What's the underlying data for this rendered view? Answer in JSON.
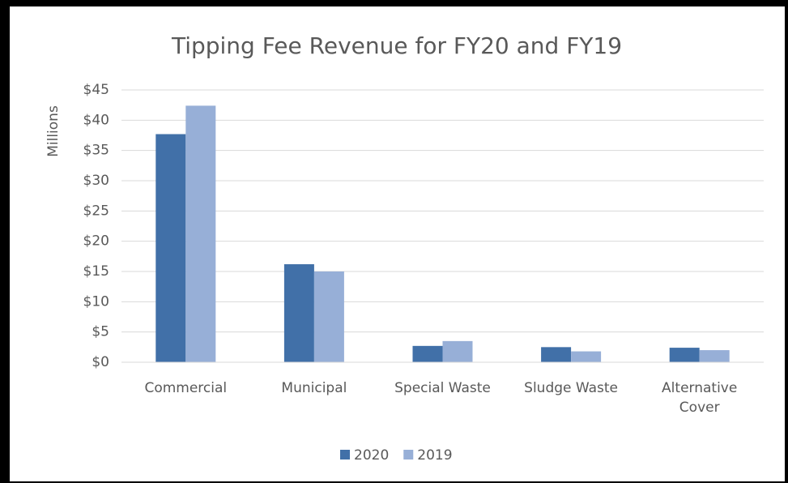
{
  "chart_data": {
    "type": "bar",
    "title": "Tipping Fee Revenue for FY20 and FY19",
    "y_label": "Millions",
    "categories": [
      "Commercial",
      "Municipal",
      "Special Waste",
      "Sludge Waste",
      "Alternative Cover"
    ],
    "series": [
      {
        "name": "2020",
        "color": "#4170a8",
        "values": [
          37.7,
          16.2,
          2.7,
          2.5,
          2.4
        ]
      },
      {
        "name": "2019",
        "color": "#97afd7",
        "values": [
          42.4,
          15.0,
          3.5,
          1.8,
          2.0
        ]
      }
    ],
    "ylim": [
      0,
      45
    ],
    "yticks": [
      {
        "value": 0,
        "label": "$0"
      },
      {
        "value": 5,
        "label": "$5"
      },
      {
        "value": 10,
        "label": "$10"
      },
      {
        "value": 15,
        "label": "$15"
      },
      {
        "value": 20,
        "label": "$20"
      },
      {
        "value": 25,
        "label": "$25"
      },
      {
        "value": 30,
        "label": "$30"
      },
      {
        "value": 35,
        "label": "$35"
      },
      {
        "value": 40,
        "label": "$40"
      },
      {
        "value": 45,
        "label": "$45"
      }
    ],
    "grid": true,
    "legend": "bottom"
  }
}
